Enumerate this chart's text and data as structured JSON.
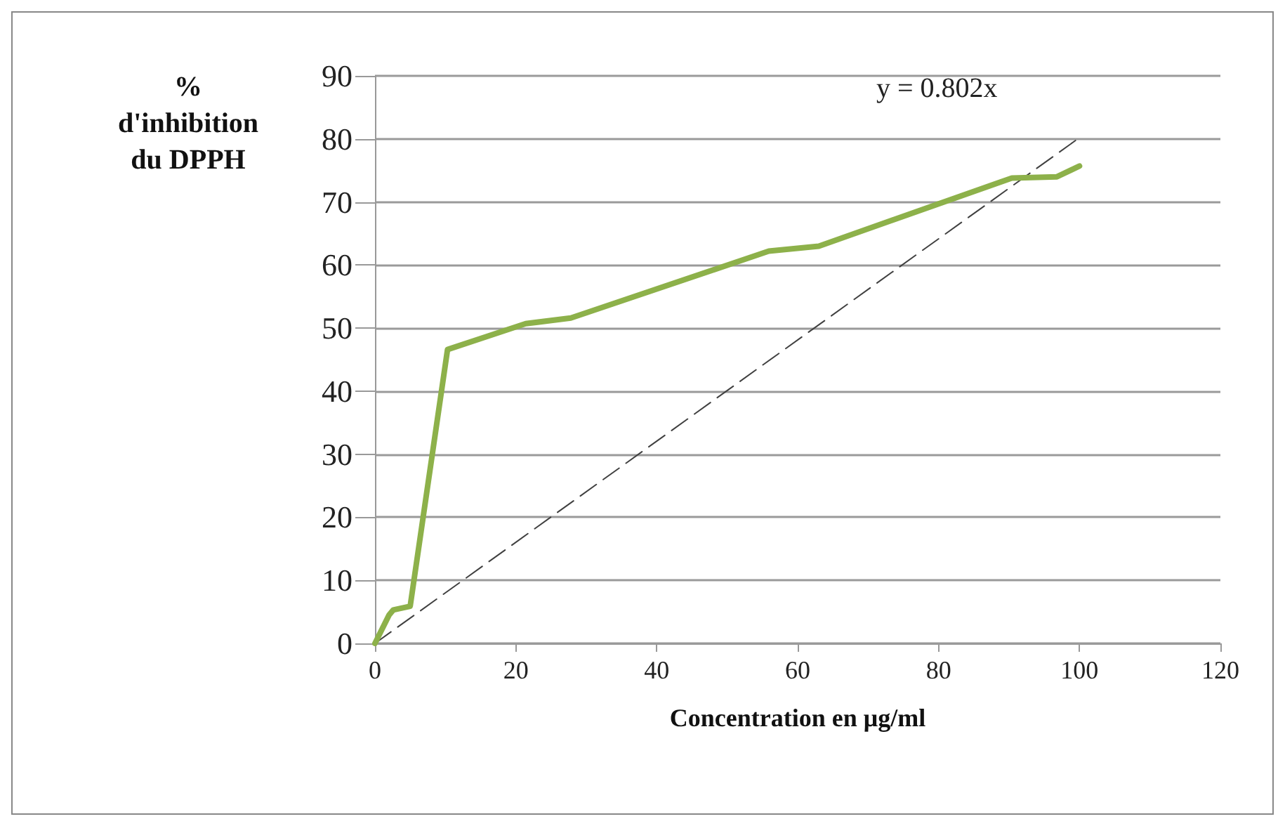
{
  "chart_data": {
    "type": "line",
    "xlabel": "Concentration en μg/ml",
    "ylabel": "%\nd'inhibition\ndu DPPH",
    "annotations": [
      "y = 0.802x"
    ],
    "xlim": [
      0,
      120
    ],
    "xticks": [
      0,
      20,
      40,
      60,
      80,
      100,
      120
    ],
    "ylim": [
      0,
      90
    ],
    "yticks": [
      0,
      10,
      20,
      30,
      40,
      50,
      60,
      70,
      80,
      90
    ],
    "grid": "y",
    "marker": "none",
    "line_style": "solid",
    "series": [
      {
        "color": "#8db14a",
        "x": [
          0,
          2,
          2.6,
          5,
          10.3,
          21.4,
          27.8,
          55.9,
          63,
          90.4,
          96.8,
          100
        ],
        "values": [
          0,
          4.5,
          5.3,
          5.9,
          46.6,
          50.7,
          51.6,
          62.2,
          63,
          73.8,
          74,
          75.7
        ]
      },
      {
        "type": "line",
        "color": "#404040",
        "line_style": "dashed",
        "x": [
          0,
          100
        ],
        "values": [
          0,
          80.2
        ]
      }
    ]
  }
}
